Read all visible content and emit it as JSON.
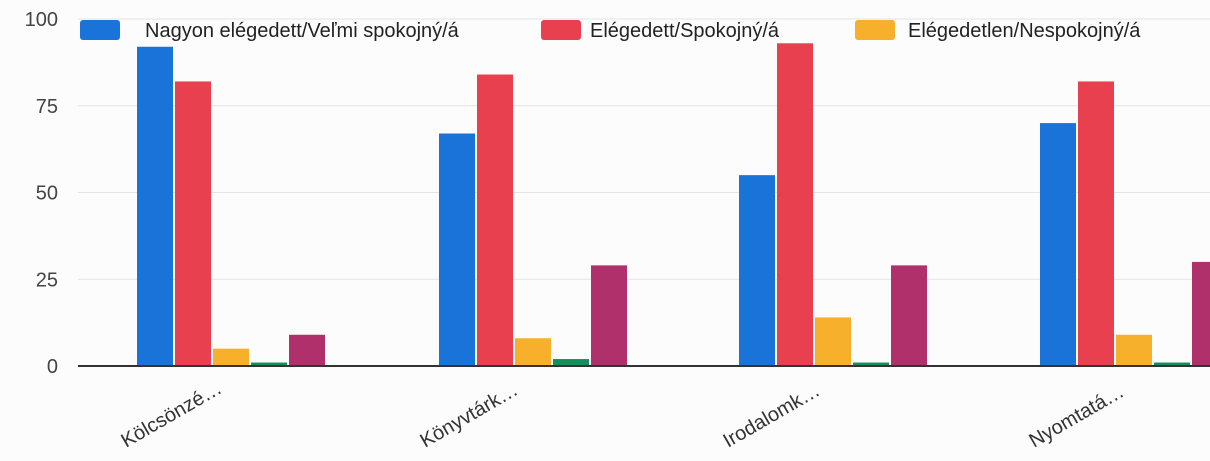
{
  "chart_data": {
    "type": "bar",
    "title": "",
    "xlabel": "",
    "ylabel": "",
    "ylim": [
      0,
      100
    ],
    "yticks": [
      0,
      25,
      50,
      75,
      100
    ],
    "grid": true,
    "legend_position": "top",
    "categories": [
      "Kölcsönzé…",
      "Könyvtárk…",
      "Irodalomk…",
      "Nyomtatá…"
    ],
    "series": [
      {
        "name": "Nagyon elégedett/Veľmi spokojný/á",
        "color": "#1a73d9",
        "values": [
          92,
          67,
          55,
          70
        ]
      },
      {
        "name": "Elégedett/Spokojný/á",
        "color": "#e8404f",
        "values": [
          82,
          84,
          93,
          82
        ]
      },
      {
        "name": "Elégedetlen/Nespokojný/á",
        "color": "#f7b02b",
        "values": [
          5,
          8,
          14,
          9
        ]
      },
      {
        "name": "",
        "color": "#138f5c",
        "values": [
          1,
          2,
          1,
          1
        ]
      },
      {
        "name": "",
        "color": "#b0306c",
        "values": [
          9,
          29,
          29,
          30
        ]
      }
    ]
  }
}
